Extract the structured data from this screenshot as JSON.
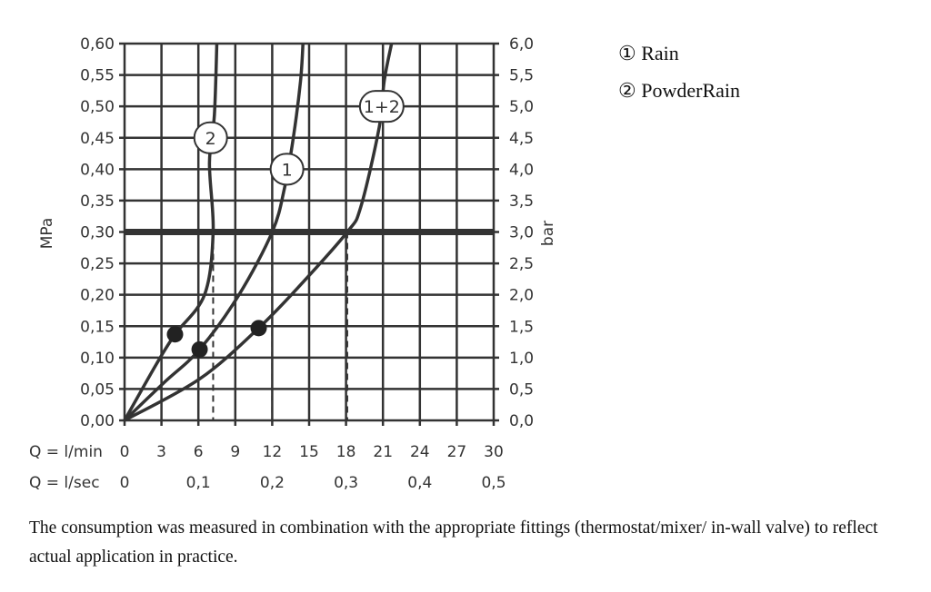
{
  "chart_data": {
    "type": "line",
    "xlabel_rows": [
      {
        "label": "Q = l/min",
        "ticks": [
          "0",
          "3",
          "6",
          "9",
          "12",
          "15",
          "18",
          "21",
          "24",
          "27",
          "30"
        ],
        "values": [
          0,
          3,
          6,
          9,
          12,
          15,
          18,
          21,
          24,
          27,
          30
        ]
      },
      {
        "label": "Q = l/sec",
        "ticks": [
          "0",
          "0,1",
          "0,2",
          "0,3",
          "0,4",
          "0,5"
        ],
        "values": [
          0,
          6,
          12,
          18,
          24,
          30
        ]
      }
    ],
    "ylabel_left": "MPa",
    "ylabel_right": "bar",
    "xlim": [
      0,
      30
    ],
    "ylim": [
      0,
      0.6
    ],
    "yticks_left": [
      "0,00",
      "0,05",
      "0,10",
      "0,15",
      "0,20",
      "0,25",
      "0,30",
      "0,35",
      "0,40",
      "0,45",
      "0,50",
      "0,55",
      "0,60"
    ],
    "yticks_right": [
      "0,0",
      "0,5",
      "1,0",
      "1,5",
      "2,0",
      "2,5",
      "3,0",
      "3,5",
      "4,0",
      "4,5",
      "5,0",
      "5,5",
      "6,0"
    ],
    "grid": true,
    "reference_line": {
      "y": 0.3
    },
    "series": [
      {
        "name": "2",
        "points": [
          [
            0,
            0
          ],
          [
            2.6,
            0.09
          ],
          [
            4.1,
            0.137
          ],
          [
            6.5,
            0.2
          ],
          [
            7.2,
            0.3
          ],
          [
            6.9,
            0.41
          ],
          [
            7.3,
            0.486
          ],
          [
            7.5,
            0.6
          ]
        ],
        "marker": [
          4.1,
          0.137
        ],
        "label_at": [
          7.0,
          0.45
        ],
        "drop_x": 7.2
      },
      {
        "name": "1",
        "points": [
          [
            0,
            0
          ],
          [
            3.2,
            0.06
          ],
          [
            6.1,
            0.113
          ],
          [
            9.3,
            0.2
          ],
          [
            12.0,
            0.3
          ],
          [
            13.0,
            0.37
          ],
          [
            13.7,
            0.448
          ],
          [
            14.3,
            0.54
          ],
          [
            14.5,
            0.6
          ]
        ],
        "marker": [
          6.1,
          0.113
        ],
        "label_at": [
          13.2,
          0.4
        ],
        "drop_x": 12.0
      },
      {
        "name": "1+2",
        "points": [
          [
            0,
            0
          ],
          [
            6.1,
            0.066
          ],
          [
            10.9,
            0.147
          ],
          [
            14.5,
            0.22
          ],
          [
            18.1,
            0.3
          ],
          [
            19.2,
            0.34
          ],
          [
            20.7,
            0.467
          ],
          [
            21.1,
            0.54
          ],
          [
            21.7,
            0.6
          ]
        ],
        "marker": [
          10.9,
          0.147
        ],
        "label_at": [
          20.9,
          0.5
        ],
        "drop_x": 18.1
      }
    ],
    "colors": {
      "lines": "#333333",
      "grid": "#333333"
    }
  },
  "legend": [
    {
      "symbol": "①",
      "label": "Rain"
    },
    {
      "symbol": "②",
      "label": "PowderRain"
    }
  ],
  "caption": "The consumption was measured in combination with the appropriate fittings (thermostat/mixer/ in-wall valve) to reflect actual application in practice."
}
